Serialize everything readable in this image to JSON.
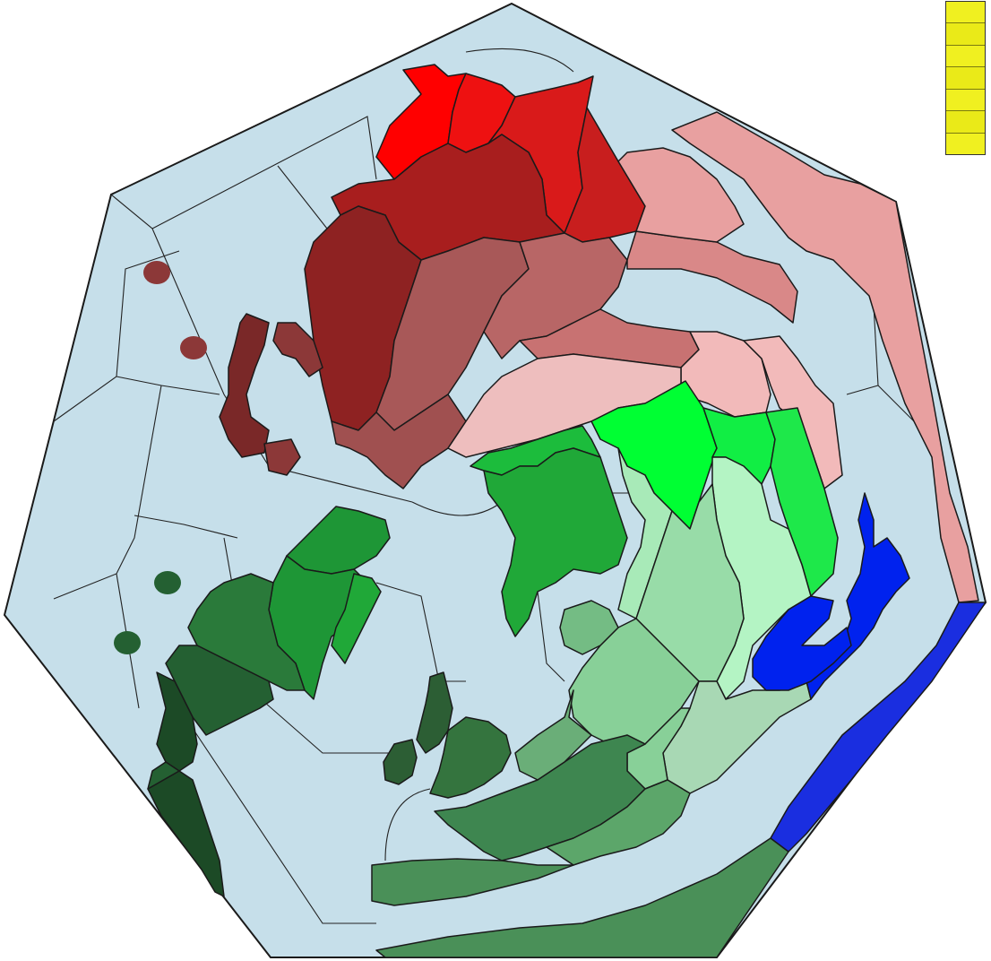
{
  "map": {
    "ocean_color": "#c6dfea",
    "outline_color": "#1a1a1a",
    "regions": [
      {
        "id": "north-cap",
        "name": "red-north-cap",
        "color": "#ff0000"
      },
      {
        "id": "red-ridge-1",
        "name": "red-ridge-1",
        "color": "#ee1111"
      },
      {
        "id": "red-ridge-2",
        "name": "red-ridge-2",
        "color": "#d91a1a"
      },
      {
        "id": "red-ridge-3",
        "name": "red-ridge-3",
        "color": "#c81e1e"
      },
      {
        "id": "darkred-main",
        "name": "darkred-heartland",
        "color": "#a81e1e"
      },
      {
        "id": "darkred-west",
        "name": "darkred-west",
        "color": "#8e2222"
      },
      {
        "id": "maroon-ring",
        "name": "maroon-ring",
        "color": "#7a2828"
      },
      {
        "id": "maroon-inner",
        "name": "maroon-inner",
        "color": "#8c3838"
      },
      {
        "id": "rose-center",
        "name": "rose-center",
        "color": "#a85858"
      },
      {
        "id": "rose-east",
        "name": "rose-east",
        "color": "#b86666"
      },
      {
        "id": "rose-south",
        "name": "rose-south",
        "color": "#a05050"
      },
      {
        "id": "salmon-1",
        "name": "salmon-1",
        "color": "#c87272"
      },
      {
        "id": "salmon-2",
        "name": "salmon-2",
        "color": "#d98888"
      },
      {
        "id": "pink-1",
        "name": "pink-1",
        "color": "#e8a0a0"
      },
      {
        "id": "pink-2",
        "name": "pink-2",
        "color": "#f2baba"
      },
      {
        "id": "pink-3",
        "name": "pink-3",
        "color": "#eebebe"
      },
      {
        "id": "pink-east",
        "name": "pink-east-coast",
        "color": "#e8a0a0"
      },
      {
        "id": "green-bright",
        "name": "green-bright",
        "color": "#00ff33"
      },
      {
        "id": "green-2",
        "name": "green-2",
        "color": "#11ee44"
      },
      {
        "id": "green-3",
        "name": "green-3",
        "color": "#1ee84a"
      },
      {
        "id": "mint-1",
        "name": "mint-1",
        "color": "#a8eab8"
      },
      {
        "id": "mint-2",
        "name": "mint-2",
        "color": "#b4f4c4"
      },
      {
        "id": "mint-3",
        "name": "mint-3",
        "color": "#98dca8"
      },
      {
        "id": "sage-1",
        "name": "sage-1",
        "color": "#88d098"
      },
      {
        "id": "sage-2",
        "name": "sage-2",
        "color": "#a8d8b4"
      },
      {
        "id": "sage-3",
        "name": "sage-3",
        "color": "#74bc84"
      },
      {
        "id": "green-mid-1",
        "name": "green-mid-1",
        "color": "#1cbc3c"
      },
      {
        "id": "green-mid-2",
        "name": "green-mid-2",
        "color": "#20a838"
      },
      {
        "id": "green-mid-3",
        "name": "green-mid-3",
        "color": "#1e9636"
      },
      {
        "id": "forest-1",
        "name": "forest-1",
        "color": "#2a7a3a"
      },
      {
        "id": "forest-2",
        "name": "forest-2",
        "color": "#246032"
      },
      {
        "id": "forest-3",
        "name": "forest-3",
        "color": "#1c4a26"
      },
      {
        "id": "forest-4",
        "name": "forest-4",
        "color": "#3e8650"
      },
      {
        "id": "forest-5",
        "name": "forest-5",
        "color": "#4a9058"
      },
      {
        "id": "forest-6",
        "name": "forest-6",
        "color": "#5ca66a"
      },
      {
        "id": "forest-7",
        "name": "forest-7",
        "color": "#6aae78"
      },
      {
        "id": "island-1",
        "name": "island-1",
        "color": "#2c5e34"
      },
      {
        "id": "island-2",
        "name": "island-2",
        "color": "#34743e"
      },
      {
        "id": "blue-1",
        "name": "blue-1",
        "color": "#0022ee"
      },
      {
        "id": "blue-2",
        "name": "blue-2",
        "color": "#1a2ee0"
      }
    ],
    "markers": [
      {
        "name": "maroon-marker-1",
        "color": "#8c3838"
      },
      {
        "name": "maroon-marker-2",
        "color": "#8c3838"
      },
      {
        "name": "green-marker-1",
        "color": "#246032"
      },
      {
        "name": "green-marker-2",
        "color": "#246032"
      }
    ]
  },
  "legend": {
    "color": "#f0f020",
    "alt_color": "#eaea18",
    "swatches": 7
  }
}
